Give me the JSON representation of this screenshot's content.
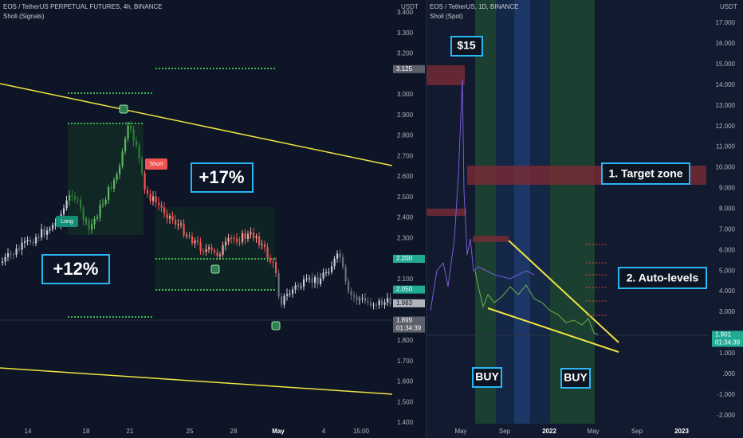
{
  "left": {
    "title": "EOS / TetherUS PERPETUAL FUTURES, 4h, BINANCE",
    "indicator": "Sholi (Signals)",
    "currency": "USDT",
    "price_labels": [
      "3.400",
      "3.300",
      "3.200",
      "3.000",
      "2.900",
      "2.800",
      "2.700",
      "2.600",
      "2.500",
      "2.400",
      "2.300",
      "2.100",
      "1.800",
      "1.700",
      "1.600",
      "1.500",
      "1.400"
    ],
    "price_tags": [
      "3.125",
      "2.200",
      "2.050",
      "1.983",
      "1.899"
    ],
    "countdown": "01:34:39",
    "time_labels": [
      "14",
      "18",
      "21",
      "25",
      "28",
      "May",
      "4",
      "15:00"
    ],
    "annotations": {
      "gain_long": "+12%",
      "gain_short": "+17%",
      "long": "Long",
      "short": "Short"
    }
  },
  "right": {
    "title": "EOS / TetherUS, 1D, BINANCE",
    "indicator": "Sholi (Spot)",
    "currency": "USDT",
    "price_labels": [
      "17.000",
      "16.000",
      "15.000",
      "14.000",
      "13.000",
      "12.000",
      "11.000",
      "10.000",
      "9.000",
      "8.000",
      "7.000",
      "6.000",
      "5.000",
      "4.000",
      "3.000",
      "1.000",
      ".000",
      "-1.000",
      "-2.000"
    ],
    "price_tag": "1.901",
    "countdown": "01:34:39",
    "time_labels": [
      "May",
      "Sep",
      "2022",
      "May",
      "Sep",
      "2023"
    ],
    "annotations": {
      "peak": "$15",
      "target": "1. Target zone",
      "levels": "2. Auto-levels",
      "buy1": "BUY",
      "buy2": "BUY"
    }
  }
}
